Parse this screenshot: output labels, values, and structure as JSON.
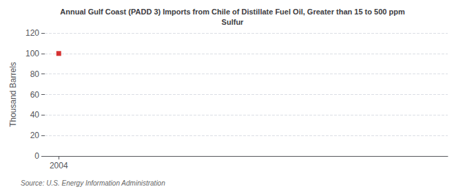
{
  "chart_data": {
    "type": "scatter",
    "title": "Annual Gulf Coast (PADD 3) Imports from Chile of Distillate Fuel Oil, Greater than 15 to 500 ppm\nSulfur",
    "ylabel": "Thousand Barrels",
    "annotations": [
      "Source: U.S. Energy Information Administration"
    ],
    "x": [
      2004
    ],
    "values": [
      100
    ],
    "color": "#cc0000",
    "marker": "square",
    "xlim": [
      2003.3,
      2023.5
    ],
    "xticks": [
      2004
    ],
    "ylim": [
      0,
      120
    ],
    "yticks": [
      0,
      20,
      40,
      60,
      80,
      100,
      120
    ],
    "grid": true
  }
}
